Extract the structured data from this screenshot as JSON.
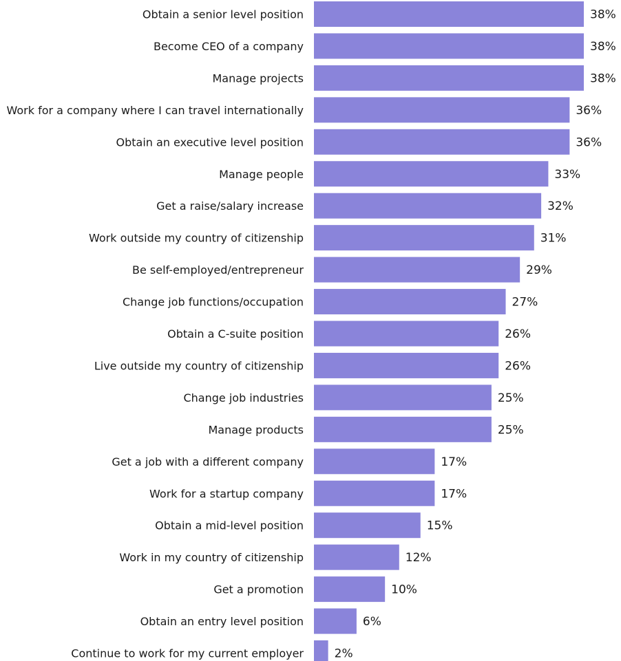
{
  "colors": {
    "bar": "#8A84DA",
    "text": "#1a1a1a",
    "background": "#ffffff"
  },
  "chart_data": {
    "type": "bar",
    "orientation": "horizontal",
    "grid": false,
    "legend": "none",
    "xlim": [
      0,
      38
    ],
    "value_suffix": "%",
    "categories": [
      "Obtain a senior level position",
      "Become CEO of a company",
      "Manage projects",
      "Work for a company where I can travel internationally",
      "Obtain an executive level position",
      "Manage people",
      "Get a raise/salary increase",
      "Work outside my country of citizenship",
      "Be self-employed/entrepreneur",
      "Change job functions/occupation",
      "Obtain a C-suite position",
      "Live outside my country of citizenship",
      "Change job industries",
      "Manage products",
      "Get a job with a different company",
      "Work for a startup company",
      "Obtain a mid-level position",
      "Work in my country of citizenship",
      "Get a promotion",
      "Obtain an entry level position",
      "Continue to work for my current employer"
    ],
    "values": [
      38,
      38,
      38,
      36,
      36,
      33,
      32,
      31,
      29,
      27,
      26,
      26,
      25,
      25,
      17,
      17,
      15,
      12,
      10,
      6,
      2
    ],
    "value_labels": [
      "38%",
      "38%",
      "38%",
      "36%",
      "36%",
      "33%",
      "32%",
      "31%",
      "29%",
      "27%",
      "26%",
      "26%",
      "25%",
      "25%",
      "17%",
      "17%",
      "15%",
      "12%",
      "10%",
      "6%",
      "2%"
    ]
  }
}
